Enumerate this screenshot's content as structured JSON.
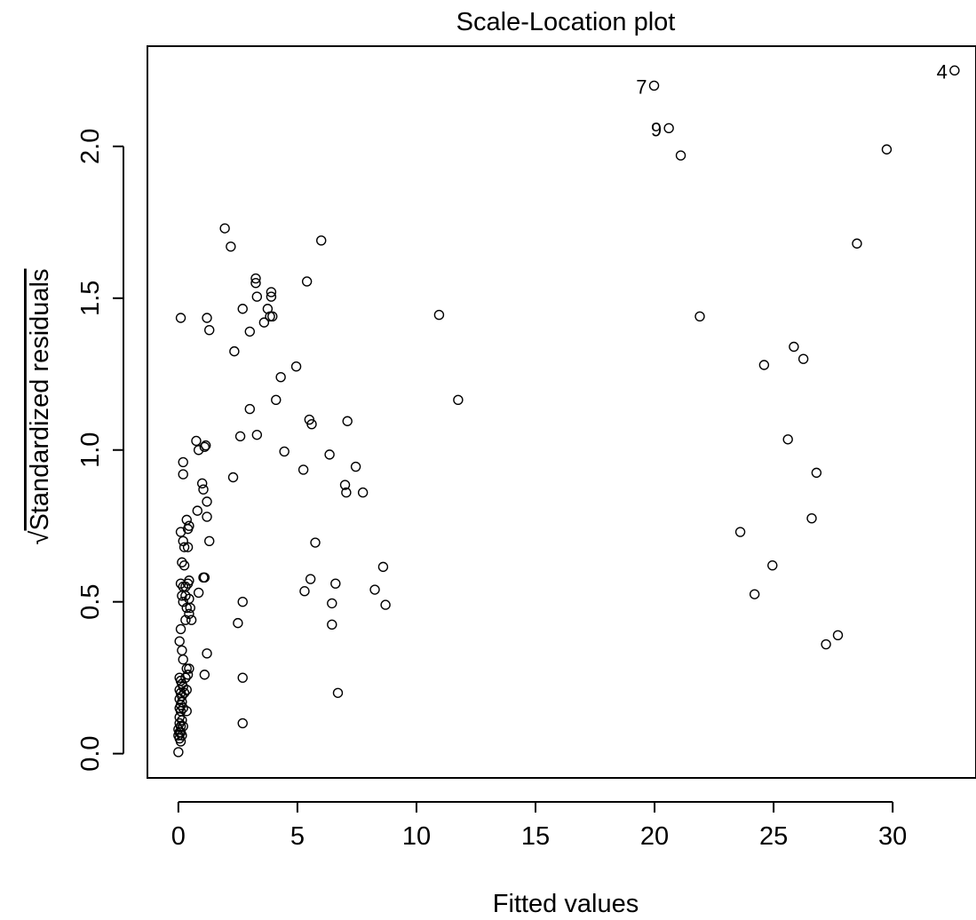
{
  "chart_data": {
    "type": "scatter",
    "title": "Scale-Location plot",
    "xlabel": "Fitted values",
    "ylabel_parts": {
      "radical": "√",
      "text": "Standardized residuals"
    },
    "xlim": [
      -1.3,
      33.5
    ],
    "ylim": [
      -0.08,
      2.33
    ],
    "xticks": [
      0,
      5,
      10,
      15,
      20,
      25,
      30
    ],
    "yticks": [
      0.0,
      0.5,
      1.0,
      1.5,
      2.0
    ],
    "xtick_labels": [
      "0",
      "5",
      "10",
      "15",
      "20",
      "25",
      "30"
    ],
    "ytick_labels": [
      "0.0",
      "0.5",
      "1.0",
      "1.5",
      "2.0"
    ],
    "grid": false,
    "legend": "none",
    "marker": "open-circle",
    "points": [
      [
        32.6,
        2.25
      ],
      [
        19.98,
        2.2
      ],
      [
        20.6,
        2.06
      ],
      [
        21.1,
        1.97
      ],
      [
        29.75,
        1.99
      ],
      [
        28.5,
        1.68
      ],
      [
        21.9,
        1.44
      ],
      [
        25.85,
        1.34
      ],
      [
        26.25,
        1.3
      ],
      [
        24.6,
        1.28
      ],
      [
        25.6,
        1.035
      ],
      [
        26.8,
        0.925
      ],
      [
        26.6,
        0.775
      ],
      [
        23.6,
        0.73
      ],
      [
        24.95,
        0.62
      ],
      [
        24.2,
        0.525
      ],
      [
        27.7,
        0.39
      ],
      [
        27.2,
        0.36
      ],
      [
        10.95,
        1.445
      ],
      [
        11.75,
        1.165
      ],
      [
        1.95,
        1.73
      ],
      [
        2.2,
        1.67
      ],
      [
        6.0,
        1.69
      ],
      [
        5.4,
        1.555
      ],
      [
        3.25,
        1.565
      ],
      [
        3.25,
        1.55
      ],
      [
        3.3,
        1.505
      ],
      [
        3.9,
        1.52
      ],
      [
        3.9,
        1.505
      ],
      [
        3.75,
        1.465
      ],
      [
        3.85,
        1.44
      ],
      [
        3.95,
        1.44
      ],
      [
        3.6,
        1.42
      ],
      [
        2.7,
        1.465
      ],
      [
        1.2,
        1.435
      ],
      [
        1.3,
        1.395
      ],
      [
        0.1,
        1.435
      ],
      [
        3.0,
        1.39
      ],
      [
        2.35,
        1.325
      ],
      [
        4.95,
        1.275
      ],
      [
        4.3,
        1.24
      ],
      [
        4.1,
        1.165
      ],
      [
        3.0,
        1.135
      ],
      [
        5.5,
        1.1
      ],
      [
        5.6,
        1.085
      ],
      [
        7.1,
        1.095
      ],
      [
        2.6,
        1.045
      ],
      [
        3.3,
        1.05
      ],
      [
        4.45,
        0.995
      ],
      [
        6.35,
        0.985
      ],
      [
        5.25,
        0.935
      ],
      [
        7.45,
        0.945
      ],
      [
        7.0,
        0.885
      ],
      [
        7.05,
        0.86
      ],
      [
        7.75,
        0.86
      ],
      [
        2.3,
        0.91
      ],
      [
        0.75,
        1.03
      ],
      [
        0.85,
        1.0
      ],
      [
        1.1,
        1.01
      ],
      [
        1.15,
        1.015
      ],
      [
        0.2,
        0.96
      ],
      [
        0.2,
        0.92
      ],
      [
        1.0,
        0.89
      ],
      [
        1.05,
        0.87
      ],
      [
        1.2,
        0.83
      ],
      [
        1.2,
        0.78
      ],
      [
        1.3,
        0.7
      ],
      [
        0.8,
        0.8
      ],
      [
        0.35,
        0.77
      ],
      [
        0.4,
        0.74
      ],
      [
        0.45,
        0.75
      ],
      [
        0.1,
        0.73
      ],
      [
        0.2,
        0.7
      ],
      [
        0.25,
        0.68
      ],
      [
        0.4,
        0.68
      ],
      [
        0.15,
        0.63
      ],
      [
        0.25,
        0.62
      ],
      [
        1.05,
        0.58
      ],
      [
        1.1,
        0.58
      ],
      [
        0.1,
        0.56
      ],
      [
        0.2,
        0.55
      ],
      [
        0.3,
        0.55
      ],
      [
        0.4,
        0.56
      ],
      [
        0.45,
        0.57
      ],
      [
        0.15,
        0.52
      ],
      [
        0.3,
        0.52
      ],
      [
        0.45,
        0.51
      ],
      [
        0.85,
        0.53
      ],
      [
        0.2,
        0.5
      ],
      [
        0.35,
        0.48
      ],
      [
        0.5,
        0.48
      ],
      [
        0.45,
        0.46
      ],
      [
        0.55,
        0.44
      ],
      [
        0.3,
        0.44
      ],
      [
        0.1,
        0.41
      ],
      [
        0.05,
        0.37
      ],
      [
        0.15,
        0.34
      ],
      [
        0.2,
        0.31
      ],
      [
        1.2,
        0.33
      ],
      [
        1.1,
        0.26
      ],
      [
        0.35,
        0.28
      ],
      [
        0.45,
        0.28
      ],
      [
        0.4,
        0.26
      ],
      [
        0.3,
        0.25
      ],
      [
        0.05,
        0.25
      ],
      [
        0.1,
        0.24
      ],
      [
        0.15,
        0.23
      ],
      [
        0.2,
        0.22
      ],
      [
        0.05,
        0.21
      ],
      [
        0.1,
        0.2
      ],
      [
        0.15,
        0.19
      ],
      [
        0.25,
        0.2
      ],
      [
        0.35,
        0.21
      ],
      [
        0.05,
        0.18
      ],
      [
        0.15,
        0.17
      ],
      [
        0.1,
        0.16
      ],
      [
        0.05,
        0.15
      ],
      [
        0.2,
        0.15
      ],
      [
        0.1,
        0.14
      ],
      [
        0.35,
        0.14
      ],
      [
        0.05,
        0.12
      ],
      [
        0.15,
        0.11
      ],
      [
        0.05,
        0.1
      ],
      [
        0.1,
        0.09
      ],
      [
        0.2,
        0.09
      ],
      [
        0.0,
        0.08
      ],
      [
        0.05,
        0.07
      ],
      [
        0.1,
        0.07
      ],
      [
        0.0,
        0.06
      ],
      [
        0.15,
        0.06
      ],
      [
        0.05,
        0.05
      ],
      [
        0.1,
        0.04
      ],
      [
        0.0,
        0.005
      ],
      [
        2.5,
        0.43
      ],
      [
        2.7,
        0.5
      ],
      [
        2.7,
        0.25
      ],
      [
        2.7,
        0.1
      ],
      [
        5.75,
        0.695
      ],
      [
        5.55,
        0.575
      ],
      [
        5.3,
        0.535
      ],
      [
        6.6,
        0.56
      ],
      [
        6.45,
        0.495
      ],
      [
        6.45,
        0.425
      ],
      [
        6.7,
        0.2
      ],
      [
        8.6,
        0.615
      ],
      [
        8.25,
        0.54
      ],
      [
        8.7,
        0.49
      ]
    ],
    "labeled_points": [
      {
        "label": "4",
        "x": 32.6,
        "y": 2.25
      },
      {
        "label": "7",
        "x": 19.98,
        "y": 2.2
      },
      {
        "label": "9",
        "x": 20.6,
        "y": 2.06
      }
    ]
  }
}
